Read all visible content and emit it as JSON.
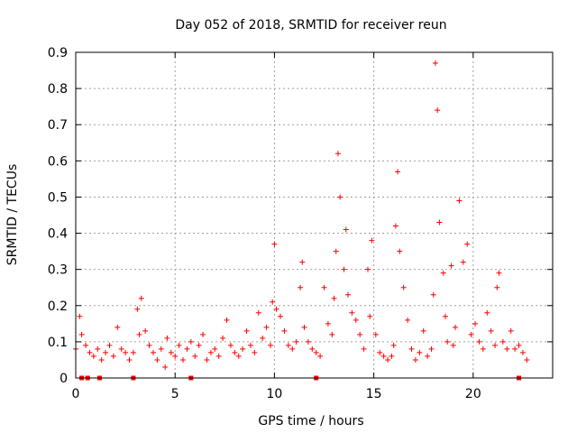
{
  "chart_data": {
    "type": "scatter",
    "title": "Day 052 of 2018, SRMTID for receiver reun",
    "xlabel": "GPS time / hours",
    "ylabel": "SRMTID / TECUs",
    "xlim": [
      0,
      24
    ],
    "ylim": [
      0,
      0.9
    ],
    "xticks": [
      0,
      5,
      10,
      15,
      20
    ],
    "xtick_labels": [
      "0",
      "5",
      "10",
      "15",
      "20"
    ],
    "yticks": [
      0,
      0.1,
      0.2,
      0.3,
      0.4,
      0.5,
      0.6,
      0.7,
      0.8,
      0.9
    ],
    "ytick_labels": [
      "0",
      "0.1",
      "0.2",
      "0.3",
      "0.4",
      "0.5",
      "0.6",
      "0.7",
      "0.8",
      "0.9"
    ],
    "grid": true,
    "marker": "+",
    "color": "#ff0000",
    "series": [
      {
        "name": "SRMTID",
        "x": [
          0.0,
          0.2,
          0.3,
          0.5,
          0.7,
          0.9,
          1.1,
          1.3,
          1.5,
          1.7,
          1.9,
          2.1,
          2.3,
          2.5,
          2.7,
          2.9,
          3.1,
          3.2,
          3.3,
          3.5,
          3.7,
          3.9,
          4.1,
          4.3,
          4.5,
          4.6,
          4.8,
          5.0,
          5.2,
          5.4,
          5.6,
          5.8,
          6.0,
          6.2,
          6.4,
          6.6,
          6.8,
          7.0,
          7.2,
          7.4,
          7.6,
          7.8,
          8.0,
          8.2,
          8.4,
          8.6,
          8.8,
          9.0,
          9.2,
          9.4,
          9.6,
          9.8,
          9.9,
          10.0,
          10.1,
          10.3,
          10.5,
          10.7,
          10.9,
          11.1,
          11.3,
          11.4,
          11.5,
          11.7,
          11.9,
          12.1,
          12.3,
          12.5,
          12.7,
          12.9,
          13.0,
          13.1,
          13.2,
          13.3,
          13.5,
          13.6,
          13.7,
          13.9,
          14.1,
          14.3,
          14.5,
          14.7,
          14.8,
          14.9,
          15.1,
          15.3,
          15.5,
          15.7,
          15.9,
          16.0,
          16.1,
          16.2,
          16.3,
          16.5,
          16.7,
          16.9,
          17.1,
          17.3,
          17.5,
          17.7,
          17.9,
          18.0,
          18.1,
          18.2,
          18.3,
          18.5,
          18.6,
          18.7,
          18.9,
          19.0,
          19.1,
          19.3,
          19.5,
          19.7,
          19.9,
          20.1,
          20.3,
          20.5,
          20.7,
          20.9,
          21.1,
          21.2,
          21.3,
          21.5,
          21.7,
          21.9,
          22.1,
          22.3,
          22.5,
          22.7
        ],
        "y": [
          0.08,
          0.17,
          0.12,
          0.09,
          0.07,
          0.06,
          0.08,
          0.05,
          0.07,
          0.09,
          0.06,
          0.14,
          0.08,
          0.07,
          0.05,
          0.07,
          0.19,
          0.12,
          0.22,
          0.13,
          0.09,
          0.07,
          0.05,
          0.08,
          0.03,
          0.11,
          0.07,
          0.06,
          0.09,
          0.05,
          0.08,
          0.1,
          0.06,
          0.09,
          0.12,
          0.05,
          0.07,
          0.08,
          0.06,
          0.11,
          0.16,
          0.09,
          0.07,
          0.06,
          0.08,
          0.13,
          0.09,
          0.07,
          0.18,
          0.11,
          0.14,
          0.09,
          0.21,
          0.37,
          0.19,
          0.17,
          0.13,
          0.09,
          0.08,
          0.1,
          0.25,
          0.32,
          0.14,
          0.1,
          0.08,
          0.07,
          0.06,
          0.25,
          0.15,
          0.12,
          0.22,
          0.35,
          0.62,
          0.5,
          0.3,
          0.41,
          0.23,
          0.18,
          0.16,
          0.12,
          0.08,
          0.3,
          0.17,
          0.38,
          0.12,
          0.07,
          0.06,
          0.05,
          0.06,
          0.09,
          0.42,
          0.57,
          0.35,
          0.25,
          0.16,
          0.08,
          0.05,
          0.07,
          0.13,
          0.06,
          0.08,
          0.23,
          0.87,
          0.74,
          0.43,
          0.29,
          0.17,
          0.1,
          0.31,
          0.09,
          0.14,
          0.49,
          0.32,
          0.37,
          0.12,
          0.15,
          0.1,
          0.08,
          0.18,
          0.13,
          0.09,
          0.25,
          0.29,
          0.1,
          0.08,
          0.13,
          0.08,
          0.09,
          0.07,
          0.05
        ],
        "values_note": "representative subset of dense scatter points"
      },
      {
        "name": "gaps",
        "marker": "square",
        "x": [
          0.3,
          0.6,
          1.2,
          2.9,
          5.8,
          12.1,
          22.3
        ],
        "y": [
          0,
          0,
          0,
          0,
          0,
          0,
          0
        ]
      }
    ]
  }
}
